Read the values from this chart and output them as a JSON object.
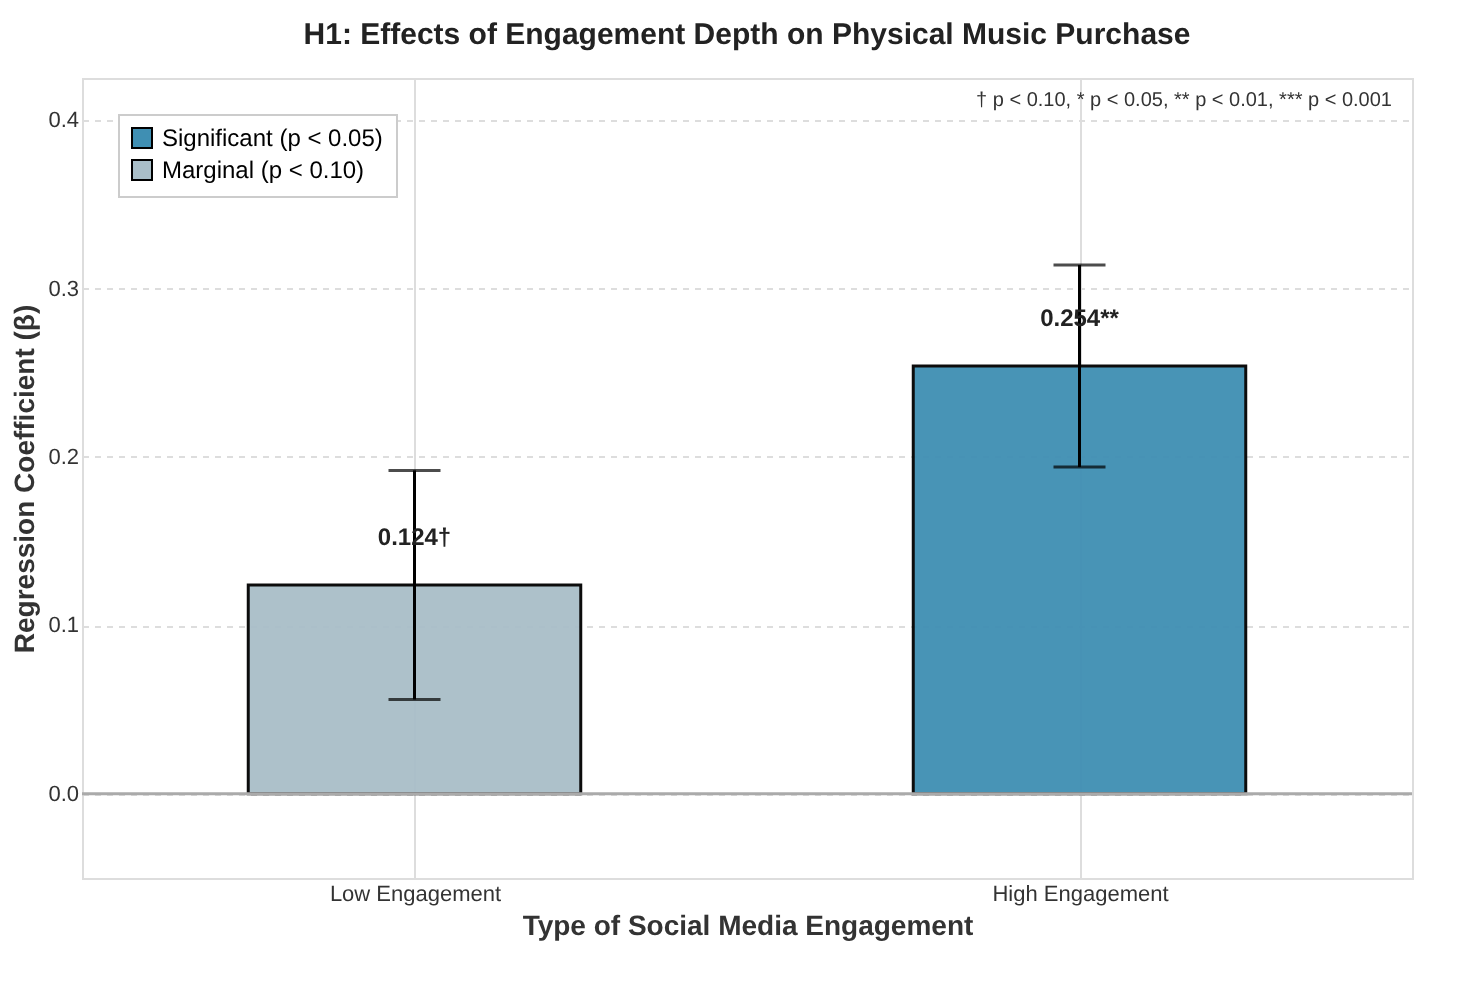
{
  "chart_data": {
    "type": "bar",
    "title": "H1: Effects of Engagement Depth on Physical Music Purchase",
    "xlabel": "Type of Social Media Engagement",
    "ylabel": "Regression Coefficient (β)",
    "categories": [
      "Low Engagement",
      "High Engagement"
    ],
    "series": [
      {
        "name": "Significant (p < 0.05)",
        "color": "#3f8fb3",
        "values": [
          null,
          0.254
        ],
        "errors": [
          null,
          0.06
        ],
        "value_labels": [
          null,
          "0.254**"
        ]
      },
      {
        "name": "Marginal (p < 0.10)",
        "color": "#a9bec8",
        "values": [
          0.124,
          null
        ],
        "errors": [
          0.068,
          null
        ],
        "value_labels": [
          "0.124†",
          null
        ]
      }
    ],
    "ylim": [
      -0.05,
      0.425
    ],
    "yticks": [
      {
        "value": 0,
        "label": "0.0"
      },
      0.1,
      0.2,
      0.3,
      0.4
    ],
    "ref_lines": [
      {
        "axis": "y",
        "value": 0,
        "color": "#aaaaaa"
      }
    ],
    "annotations": [
      "† p < 0.10, * p < 0.05, ** p < 0.01, *** p < 0.001"
    ],
    "grid": true,
    "legend": "top left"
  }
}
